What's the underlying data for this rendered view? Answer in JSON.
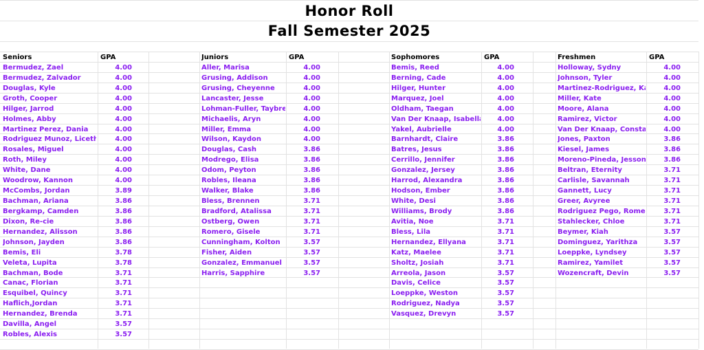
{
  "title": "Honor Roll",
  "subtitle": "Fall Semester 2025",
  "colors": {
    "name_text": "#8a1ef0",
    "header_text": "#000000",
    "grid": "#e2e2e2"
  },
  "groups": [
    {
      "heading": "Seniors",
      "gpa_heading": "GPA",
      "students": [
        {
          "name": "Bermudez, Zael",
          "gpa": "4.00"
        },
        {
          "name": "Bermudez, Zalvador",
          "gpa": "4.00"
        },
        {
          "name": "Douglas, Kyle",
          "gpa": "4.00"
        },
        {
          "name": "Groth, Cooper",
          "gpa": "4.00"
        },
        {
          "name": "Hilger, Jarrod",
          "gpa": "4.00"
        },
        {
          "name": "Holmes, Abby",
          "gpa": "4.00"
        },
        {
          "name": "Martinez Perez, Dania",
          "gpa": "4.00"
        },
        {
          "name": "Rodriguez Munoz, Liceth",
          "gpa": "4.00"
        },
        {
          "name": "Rosales, Miguel",
          "gpa": "4.00"
        },
        {
          "name": "Roth, Miley",
          "gpa": "4.00"
        },
        {
          "name": "White, Dane",
          "gpa": "4.00"
        },
        {
          "name": "Woodrow, Kannon",
          "gpa": "4.00"
        },
        {
          "name": "McCombs, Jordan",
          "gpa": "3.89"
        },
        {
          "name": "Bachman, Ariana",
          "gpa": "3.86"
        },
        {
          "name": "Bergkamp, Camden",
          "gpa": "3.86"
        },
        {
          "name": "Dixon, Re-cie",
          "gpa": "3.86"
        },
        {
          "name": "Hernandez, Alisson",
          "gpa": "3.86"
        },
        {
          "name": "Johnson, Jayden",
          "gpa": "3.86"
        },
        {
          "name": "Bemis, Eli",
          "gpa": "3.78"
        },
        {
          "name": "Veleta, Lupita",
          "gpa": "3.78"
        },
        {
          "name": "Bachman, Bode",
          "gpa": "3.71"
        },
        {
          "name": "Canac, Florian",
          "gpa": "3.71"
        },
        {
          "name": "Esquibel, Quincy",
          "gpa": "3.71"
        },
        {
          "name": "Haflich,Jordan",
          "gpa": "3.71"
        },
        {
          "name": "Hernandez, Brenda",
          "gpa": "3.71"
        },
        {
          "name": "Davilla, Angel",
          "gpa": "3.57"
        },
        {
          "name": "Robles, Alexis",
          "gpa": "3.57"
        }
      ]
    },
    {
      "heading": "Juniors",
      "gpa_heading": "GPA",
      "students": [
        {
          "name": "Aller, Marisa",
          "gpa": "4.00"
        },
        {
          "name": "Grusing, Addison",
          "gpa": "4.00"
        },
        {
          "name": "Grusing, Cheyenne",
          "gpa": "4.00"
        },
        {
          "name": "Lancaster, Jesse",
          "gpa": "4.00"
        },
        {
          "name": "Lohman-Fuller, Taybree",
          "gpa": "4.00"
        },
        {
          "name": "Michaelis, Aryn",
          "gpa": "4.00"
        },
        {
          "name": "Miller, Emma",
          "gpa": "4.00"
        },
        {
          "name": "Wilson, Kaydon",
          "gpa": "4.00"
        },
        {
          "name": "Douglas, Cash",
          "gpa": "3.86"
        },
        {
          "name": "Modrego, Elisa",
          "gpa": "3.86"
        },
        {
          "name": "Odom, Peyton",
          "gpa": "3.86"
        },
        {
          "name": "Robles, Ileana",
          "gpa": "3.86"
        },
        {
          "name": "Walker, Blake",
          "gpa": "3.86"
        },
        {
          "name": "Bless, Brennen",
          "gpa": "3.71"
        },
        {
          "name": "Bradford, Atalissa",
          "gpa": "3.71"
        },
        {
          "name": "Ostberg, Owen",
          "gpa": "3.71"
        },
        {
          "name": "Romero, Gisele",
          "gpa": "3.71"
        },
        {
          "name": "Cunningham, Kolton",
          "gpa": "3.57"
        },
        {
          "name": "Fisher, Aiden",
          "gpa": "3.57"
        },
        {
          "name": "Gonzalez, Emmanuel",
          "gpa": "3.57"
        },
        {
          "name": "Harris, Sapphire",
          "gpa": "3.57"
        }
      ]
    },
    {
      "heading": "Sophomores",
      "gpa_heading": "GPA",
      "students": [
        {
          "name": "Bemis, Reed",
          "gpa": "4.00"
        },
        {
          "name": "Berning, Cade",
          "gpa": "4.00"
        },
        {
          "name": "Hilger, Hunter",
          "gpa": "4.00"
        },
        {
          "name": "Marquez, Joel",
          "gpa": "4.00"
        },
        {
          "name": "Oldham, Taegan",
          "gpa": "4.00"
        },
        {
          "name": "Van Der Knaap, Isabella",
          "gpa": "4.00"
        },
        {
          "name": "Yakel, Aubrielle",
          "gpa": "4.00"
        },
        {
          "name": "Barnhardt, Claire",
          "gpa": "3.86"
        },
        {
          "name": "Batres, Jesus",
          "gpa": "3.86"
        },
        {
          "name": "Cerrillo, Jennifer",
          "gpa": "3.86"
        },
        {
          "name": "Gonzalez, Jersey",
          "gpa": "3.86"
        },
        {
          "name": "Harrod, Alexandra",
          "gpa": "3.86"
        },
        {
          "name": "Hodson, Ember",
          "gpa": "3.86"
        },
        {
          "name": "White, Desi",
          "gpa": "3.86"
        },
        {
          "name": "Williams, Brody",
          "gpa": "3.86"
        },
        {
          "name": "Avitia, Noe",
          "gpa": "3.71"
        },
        {
          "name": "Bless, Lila",
          "gpa": "3.71"
        },
        {
          "name": "Hernandez, Ellyana",
          "gpa": "3.71"
        },
        {
          "name": "Katz, Maelee",
          "gpa": "3.71"
        },
        {
          "name": "Sholtz, Josiah",
          "gpa": "3.71"
        },
        {
          "name": "Arreola, Jason",
          "gpa": "3.57"
        },
        {
          "name": "Davis, Celice",
          "gpa": "3.57"
        },
        {
          "name": "Loeppke, Weston",
          "gpa": "3.57"
        },
        {
          "name": "Rodriguez, Nadya",
          "gpa": "3.57"
        },
        {
          "name": "Vasquez, Drevyn",
          "gpa": "3.57"
        }
      ]
    },
    {
      "heading": "Freshmen",
      "gpa_heading": "GPA",
      "students": [
        {
          "name": "Holloway, Sydny",
          "gpa": "4.00"
        },
        {
          "name": "Johnson, Tyler",
          "gpa": "4.00"
        },
        {
          "name": "Martinez-Rodriguez, Kaylie",
          "gpa": "4.00"
        },
        {
          "name": "Miller, Kate",
          "gpa": "4.00"
        },
        {
          "name": "Moore, Alana",
          "gpa": "4.00"
        },
        {
          "name": "Ramirez, Victor",
          "gpa": "4.00"
        },
        {
          "name": "Van Der Knaap, Constantijn",
          "gpa": "4.00"
        },
        {
          "name": "Jones, Paxton",
          "gpa": "3.86"
        },
        {
          "name": "Kiesel, James",
          "gpa": "3.86"
        },
        {
          "name": "Moreno-Pineda, Jesson",
          "gpa": "3.86"
        },
        {
          "name": "Beltran, Eternity",
          "gpa": "3.71"
        },
        {
          "name": "Carlisle, Savannah",
          "gpa": "3.71"
        },
        {
          "name": "Gannett, Lucy",
          "gpa": "3.71"
        },
        {
          "name": "Greer, Avyree",
          "gpa": "3.71"
        },
        {
          "name": "Rodriguez Pego, Romel",
          "gpa": "3.71"
        },
        {
          "name": "Stahlecker, Chloe",
          "gpa": "3.71"
        },
        {
          "name": "Beymer, Kiah",
          "gpa": "3.57"
        },
        {
          "name": "Dominguez, Yarithza",
          "gpa": "3.57"
        },
        {
          "name": "Loeppke, Lyndsey",
          "gpa": "3.57"
        },
        {
          "name": "Ramirez, Yamilet",
          "gpa": "3.57"
        },
        {
          "name": "Wozencraft, Devin",
          "gpa": "3.57"
        }
      ]
    }
  ]
}
